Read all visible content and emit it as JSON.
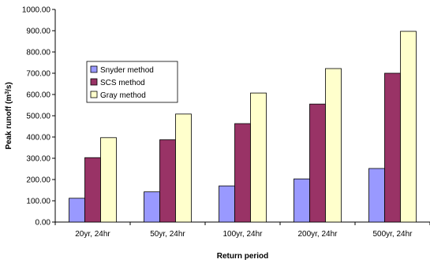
{
  "chart_data": {
    "type": "bar",
    "title": "",
    "xlabel": "Return period",
    "ylabel": {
      "prefix": "Peak runoff (m",
      "superscript": "3",
      "suffix": "/s)"
    },
    "ylim": [
      0,
      1000
    ],
    "ytick_step": 100,
    "ytick_labels": [
      "0.00",
      "100.00",
      "200.00",
      "300.00",
      "400.00",
      "500.00",
      "600.00",
      "700.00",
      "800.00",
      "900.00",
      "1000.00"
    ],
    "grid": false,
    "legend_position": "upper-left",
    "categories": [
      "20yr, 24hr",
      "50yr, 24hr",
      "100yr, 24hr",
      "200yr, 24hr",
      "500yr, 24hr"
    ],
    "series": [
      {
        "name": "Snyder method",
        "color": "#9999ff",
        "values": [
          112,
          142,
          170,
          203,
          252
        ]
      },
      {
        "name": "SCS method",
        "color": "#993366",
        "values": [
          303,
          387,
          463,
          555,
          700
        ]
      },
      {
        "name": "Gray method",
        "color": "#ffffcc",
        "values": [
          397,
          508,
          607,
          722,
          897
        ]
      }
    ]
  }
}
